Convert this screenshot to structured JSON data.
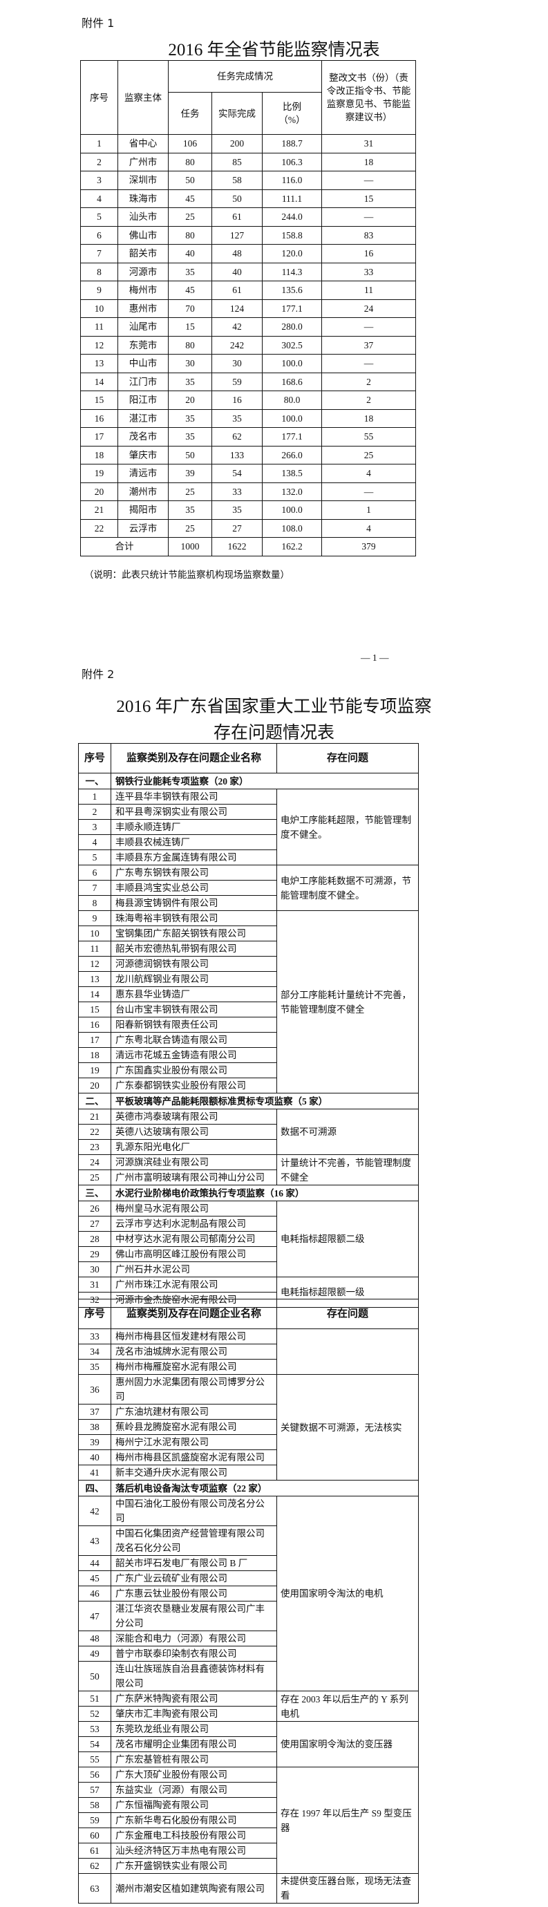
{
  "attachment1": {
    "label": "附件 1",
    "title": "2016 年全省节能监察情况表",
    "headers": {
      "no": "序号",
      "entity": "监察主体",
      "task_group": "任务完成情况",
      "task": "任务",
      "actual": "实际完成",
      "ratio": "比例（%）",
      "docs": "整改文书（份）（责令改正指令书、节能监察意见书、节能监察建议书）"
    },
    "rows": [
      {
        "no": "1",
        "entity": "省中心",
        "task": "106",
        "actual": "200",
        "ratio": "188.7",
        "docs": "31"
      },
      {
        "no": "2",
        "entity": "广州市",
        "task": "80",
        "actual": "85",
        "ratio": "106.3",
        "docs": "18"
      },
      {
        "no": "3",
        "entity": "深圳市",
        "task": "50",
        "actual": "58",
        "ratio": "116.0",
        "docs": "—"
      },
      {
        "no": "4",
        "entity": "珠海市",
        "task": "45",
        "actual": "50",
        "ratio": "111.1",
        "docs": "15"
      },
      {
        "no": "5",
        "entity": "汕头市",
        "task": "25",
        "actual": "61",
        "ratio": "244.0",
        "docs": "—"
      },
      {
        "no": "6",
        "entity": "佛山市",
        "task": "80",
        "actual": "127",
        "ratio": "158.8",
        "docs": "83"
      },
      {
        "no": "7",
        "entity": "韶关市",
        "task": "40",
        "actual": "48",
        "ratio": "120.0",
        "docs": "16"
      },
      {
        "no": "8",
        "entity": "河源市",
        "task": "35",
        "actual": "40",
        "ratio": "114.3",
        "docs": "33"
      },
      {
        "no": "9",
        "entity": "梅州市",
        "task": "45",
        "actual": "61",
        "ratio": "135.6",
        "docs": "11"
      },
      {
        "no": "10",
        "entity": "惠州市",
        "task": "70",
        "actual": "124",
        "ratio": "177.1",
        "docs": "24"
      },
      {
        "no": "11",
        "entity": "汕尾市",
        "task": "15",
        "actual": "42",
        "ratio": "280.0",
        "docs": "—"
      },
      {
        "no": "12",
        "entity": "东莞市",
        "task": "80",
        "actual": "242",
        "ratio": "302.5",
        "docs": "37"
      },
      {
        "no": "13",
        "entity": "中山市",
        "task": "30",
        "actual": "30",
        "ratio": "100.0",
        "docs": "—"
      },
      {
        "no": "14",
        "entity": "江门市",
        "task": "35",
        "actual": "59",
        "ratio": "168.6",
        "docs": "2"
      },
      {
        "no": "15",
        "entity": "阳江市",
        "task": "20",
        "actual": "16",
        "ratio": "80.0",
        "docs": "2"
      },
      {
        "no": "16",
        "entity": "湛江市",
        "task": "35",
        "actual": "35",
        "ratio": "100.0",
        "docs": "18"
      },
      {
        "no": "17",
        "entity": "茂名市",
        "task": "35",
        "actual": "62",
        "ratio": "177.1",
        "docs": "55"
      },
      {
        "no": "18",
        "entity": "肇庆市",
        "task": "50",
        "actual": "133",
        "ratio": "266.0",
        "docs": "25"
      },
      {
        "no": "19",
        "entity": "清远市",
        "task": "39",
        "actual": "54",
        "ratio": "138.5",
        "docs": "4"
      },
      {
        "no": "20",
        "entity": "潮州市",
        "task": "25",
        "actual": "33",
        "ratio": "132.0",
        "docs": "—"
      },
      {
        "no": "21",
        "entity": "揭阳市",
        "task": "35",
        "actual": "35",
        "ratio": "100.0",
        "docs": "1"
      },
      {
        "no": "22",
        "entity": "云浮市",
        "task": "25",
        "actual": "27",
        "ratio": "108.0",
        "docs": "4"
      }
    ],
    "total": {
      "label": "合计",
      "task": "1000",
      "actual": "1622",
      "ratio": "162.2",
      "docs": "379"
    },
    "note": "（说明：此表只统计节能监察机构现场监察数量）"
  },
  "page_number": "— 1 —",
  "attachment2": {
    "label": "附件 2",
    "title_line1": "2016 年广东省国家重大工业节能专项监察",
    "title_line2": "存在问题情况表",
    "headers": {
      "no": "序号",
      "name": "监察类别及存在问题企业名称",
      "issue": "存在问题"
    },
    "parts": [
      {
        "sections": [
          {
            "no": "一、",
            "title": "钢铁行业能耗专项监察（20 家）",
            "groups": [
              {
                "issue": "电炉工序能耗超限，节能管理制度不健全。",
                "rows": [
                  {
                    "no": "1",
                    "name": "连平县华丰钢铁有限公司"
                  },
                  {
                    "no": "2",
                    "name": "和平县粤深钢实业有限公司"
                  },
                  {
                    "no": "3",
                    "name": "丰顺永顺连铸厂"
                  },
                  {
                    "no": "4",
                    "name": "丰顺县农械连铸厂"
                  },
                  {
                    "no": "5",
                    "name": "丰顺县东方金属连铸有限公司"
                  }
                ]
              },
              {
                "issue": "电炉工序能耗数据不可溯源，节能管理制度不健全。",
                "rows": [
                  {
                    "no": "6",
                    "name": "广东粤东钢铁有限公司"
                  },
                  {
                    "no": "7",
                    "name": "丰顺县鸿宝实业总公司"
                  },
                  {
                    "no": "8",
                    "name": "梅县源宝铸钢件有限公司"
                  }
                ]
              },
              {
                "issue": "部分工序能耗计量统计不完善，节能管理制度不健全",
                "rows": [
                  {
                    "no": "9",
                    "name": "珠海粤裕丰钢铁有限公司"
                  },
                  {
                    "no": "10",
                    "name": "宝钢集团广东韶关钢铁有限公司"
                  },
                  {
                    "no": "11",
                    "name": "韶关市宏德热轧带钢有限公司"
                  },
                  {
                    "no": "12",
                    "name": "河源德润钢铁有限公司"
                  },
                  {
                    "no": "13",
                    "name": "龙川航辉钢业有限公司"
                  },
                  {
                    "no": "14",
                    "name": "惠东县华业铸造厂"
                  },
                  {
                    "no": "15",
                    "name": "台山市宝丰钢铁有限公司"
                  },
                  {
                    "no": "16",
                    "name": "阳春新钢铁有限责任公司"
                  },
                  {
                    "no": "17",
                    "name": "广东粤北联合铸造有限公司"
                  },
                  {
                    "no": "18",
                    "name": "清远市花城五金铸造有限公司"
                  },
                  {
                    "no": "19",
                    "name": "广东国鑫实业股份有限公司"
                  },
                  {
                    "no": "20",
                    "name": "广东泰都钢铁实业股份有限公司"
                  }
                ]
              }
            ]
          },
          {
            "no": "二、",
            "title": "平板玻璃等产品能耗限额标准贯标专项监察（5 家）",
            "groups": [
              {
                "issue": "数据不可溯源",
                "rows": [
                  {
                    "no": "21",
                    "name": "英德市鸿泰玻璃有限公司"
                  },
                  {
                    "no": "22",
                    "name": "英德八达玻璃有限公司"
                  },
                  {
                    "no": "23",
                    "name": "乳源东阳光电化厂"
                  }
                ]
              },
              {
                "issue": "计量统计不完善，节能管理制度不健全",
                "rows": [
                  {
                    "no": "24",
                    "name": "河源旗滨硅业有限公司"
                  },
                  {
                    "no": "25",
                    "name": "广州市富明玻璃有限公司神山分公司"
                  }
                ]
              }
            ]
          },
          {
            "no": "三、",
            "title": "水泥行业阶梯电价政策执行专项监察（16 家）",
            "groups": [
              {
                "issue": "电耗指标超限额二级",
                "rows": [
                  {
                    "no": "26",
                    "name": "梅州皇马水泥有限公司"
                  },
                  {
                    "no": "27",
                    "name": "云浮市亨达利水泥制品有限公司"
                  },
                  {
                    "no": "28",
                    "name": "中材亨达水泥有限公司郁南分公司"
                  },
                  {
                    "no": "29",
                    "name": "佛山市高明区峰江股份有限公司"
                  },
                  {
                    "no": "30",
                    "name": "广州石井水泥公司"
                  }
                ]
              },
              {
                "issue": "电耗指标超限额一级",
                "rows": [
                  {
                    "no": "31",
                    "name": "广州市珠江水泥有限公司"
                  },
                  {
                    "no": "32",
                    "name": "河源市金杰旋窑水泥有限公司"
                  }
                ]
              }
            ]
          }
        ]
      },
      {
        "sections": [
          {
            "no": "",
            "title": "",
            "groups": [
              {
                "issue": "",
                "rows": [
                  {
                    "no": "33",
                    "name": "梅州市梅县区恒发建材有限公司"
                  },
                  {
                    "no": "34",
                    "name": "茂名市油城牌水泥有限公司"
                  },
                  {
                    "no": "35",
                    "name": "梅州市梅雁旋窑水泥有限公司"
                  }
                ]
              },
              {
                "issue": "关键数据不可溯源，无法核实",
                "rows": [
                  {
                    "no": "36",
                    "name": "惠州固力水泥集团有限公司博罗分公司"
                  },
                  {
                    "no": "37",
                    "name": "广东油坑建材有限公司"
                  },
                  {
                    "no": "38",
                    "name": "蕉岭县龙腾旋窑水泥有限公司"
                  },
                  {
                    "no": "39",
                    "name": "梅州宁江水泥有限公司"
                  },
                  {
                    "no": "40",
                    "name": "梅州市梅县区凯盛旋窑水泥有限公司"
                  },
                  {
                    "no": "41",
                    "name": "新丰交通升庆水泥有限公司"
                  }
                ]
              }
            ]
          },
          {
            "no": "四、",
            "title": "落后机电设备淘汰专项监察（22 家）",
            "groups": [
              {
                "issue": "使用国家明令淘汰的电机",
                "rows": [
                  {
                    "no": "42",
                    "name": "中国石油化工股份有限公司茂名分公司"
                  },
                  {
                    "no": "43",
                    "name": "中国石化集团资产经营管理有限公司茂名石化分公司"
                  },
                  {
                    "no": "44",
                    "name": "韶关市坪石发电厂有限公司 B 厂"
                  },
                  {
                    "no": "45",
                    "name": "广东广业云硫矿业有限公司"
                  },
                  {
                    "no": "46",
                    "name": "广东惠云钛业股份有限公司"
                  },
                  {
                    "no": "47",
                    "name": "湛江华资农垦糖业发展有限公司广丰分公司"
                  },
                  {
                    "no": "48",
                    "name": "深能合和电力（河源）有限公司"
                  },
                  {
                    "no": "49",
                    "name": "普宁市联泰印染制衣有限公司"
                  },
                  {
                    "no": "50",
                    "name": "连山壮族瑶族自治县鑫德装饰材料有限公司"
                  }
                ]
              },
              {
                "issue": "存在 2003 年以后生产的 Y 系列电机",
                "rows": [
                  {
                    "no": "51",
                    "name": "广东萨米特陶瓷有限公司"
                  },
                  {
                    "no": "52",
                    "name": "肇庆市汇丰陶瓷有限公司"
                  }
                ]
              },
              {
                "issue": "使用国家明令淘汰的变压器",
                "rows": [
                  {
                    "no": "53",
                    "name": "东莞玖龙纸业有限公司"
                  },
                  {
                    "no": "54",
                    "name": "茂名市耀明企业集团有限公司"
                  },
                  {
                    "no": "55",
                    "name": "广东宏基管桩有限公司"
                  }
                ]
              },
              {
                "issue": "存在 1997 年以后生产 S9 型变压器",
                "rows": [
                  {
                    "no": "56",
                    "name": "广东大顶矿业股份有限公司"
                  },
                  {
                    "no": "57",
                    "name": "东益实业（河源）有限公司"
                  },
                  {
                    "no": "58",
                    "name": "广东恒福陶瓷有限公司"
                  },
                  {
                    "no": "59",
                    "name": "广东新华粤石化股份有限公司"
                  },
                  {
                    "no": "60",
                    "name": "广东金雁电工科技股份有限公司"
                  },
                  {
                    "no": "61",
                    "name": "汕头经济特区万丰热电有限公司"
                  },
                  {
                    "no": "62",
                    "name": "广东开盛钢铁实业有限公司"
                  }
                ]
              },
              {
                "issue": "未提供变压器台账，现场无法查看",
                "rows": [
                  {
                    "no": "63",
                    "name": "潮州市潮安区植如建筑陶瓷有限公司"
                  }
                ]
              }
            ]
          }
        ]
      }
    ]
  }
}
